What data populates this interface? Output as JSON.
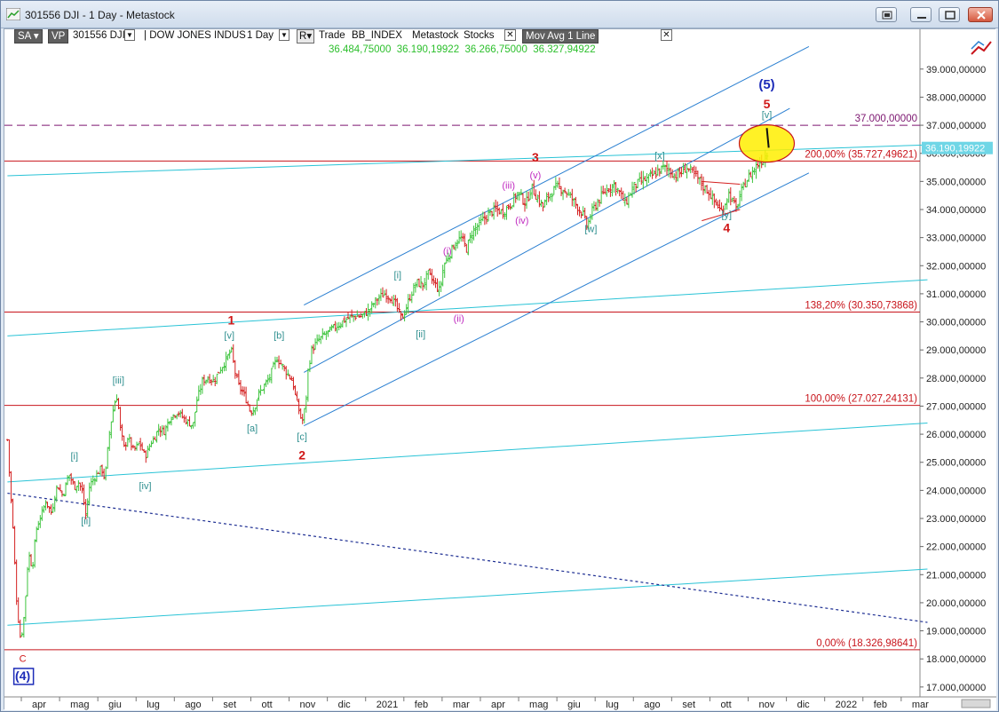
{
  "window": {
    "title": "301556 DJI - 1 Day - Metastock"
  },
  "toolbar": {
    "sa_label": "SA",
    "vp_label": "VP",
    "symbol": "301556 DJI",
    "security_name": "DOW JONES INDUS",
    "period": "1 Day",
    "r_label": "R",
    "trade_label": "Trade",
    "exchange": "BB_INDEX",
    "source": "Metastock",
    "asset_class": "Stocks",
    "indicator_label": "Mov Avg 1 Line",
    "ohlc_values": [
      "36.484,75000",
      "36.190,19922",
      "36.266,75000",
      "36.327,94922"
    ]
  },
  "colors": {
    "up_bar": "#3ec43e",
    "down_bar": "#d42020",
    "channel_blue": "#2a7fd1",
    "channel_cyan": "#29c3d6",
    "fib_red": "#c8141b",
    "level_purple": "#7c1670",
    "dotted_navy": "#1c2d92",
    "ellipse_fill": "#ffee00",
    "price_tag_cyan": "#6fd6e6"
  },
  "chart_data": {
    "type": "candlestick-ohlc",
    "title": "",
    "ylim": [
      16900,
      40100
    ],
    "yticks": [
      {
        "value": 17000,
        "label": "17.000,00000"
      },
      {
        "value": 18000,
        "label": "18.000,00000"
      },
      {
        "value": 19000,
        "label": "19.000,00000"
      },
      {
        "value": 20000,
        "label": "20.000,00000"
      },
      {
        "value": 21000,
        "label": "21.000,00000"
      },
      {
        "value": 22000,
        "label": "22.000,00000"
      },
      {
        "value": 23000,
        "label": "23.000,00000"
      },
      {
        "value": 24000,
        "label": "24.000,00000"
      },
      {
        "value": 25000,
        "label": "25.000,00000"
      },
      {
        "value": 26000,
        "label": "26.000,00000"
      },
      {
        "value": 27000,
        "label": "27.000,00000"
      },
      {
        "value": 28000,
        "label": "28.000,00000"
      },
      {
        "value": 29000,
        "label": "29.000,00000"
      },
      {
        "value": 30000,
        "label": "30.000,00000"
      },
      {
        "value": 31000,
        "label": "31.000,00000"
      },
      {
        "value": 32000,
        "label": "32.000,00000"
      },
      {
        "value": 33000,
        "label": "33.000,00000"
      },
      {
        "value": 34000,
        "label": "34.000,00000"
      },
      {
        "value": 35000,
        "label": "35.000,00000"
      },
      {
        "value": 36000,
        "label": "36.000,00000"
      },
      {
        "value": 37000,
        "label": "37.000,00000"
      },
      {
        "value": 38000,
        "label": "38.000,00000"
      },
      {
        "value": 39000,
        "label": "39.000,00000"
      }
    ],
    "xlabels": [
      "apr",
      "mag",
      "giu",
      "lug",
      "ago",
      "set",
      "ott",
      "nov",
      "dic",
      "2021",
      "feb",
      "mar",
      "apr",
      "mag",
      "giu",
      "lug",
      "ago",
      "set",
      "ott",
      "nov",
      "dic",
      "2022",
      "feb",
      "mar"
    ],
    "x_month_index": [
      0,
      1,
      2,
      3,
      4,
      5,
      6,
      7,
      8,
      9,
      10,
      11,
      12,
      13,
      14,
      15,
      16,
      17,
      18,
      19,
      20,
      21,
      22,
      23
    ],
    "x_start_month_offset": -0.85,
    "price_path": [
      [
        -0.85,
        25800
      ],
      [
        -0.8,
        24600
      ],
      [
        -0.7,
        22500
      ],
      [
        -0.6,
        19800
      ],
      [
        -0.5,
        18600
      ],
      [
        -0.4,
        19700
      ],
      [
        -0.3,
        21800
      ],
      [
        -0.2,
        21200
      ],
      [
        -0.1,
        22600
      ],
      [
        0.0,
        23000
      ],
      [
        0.15,
        23600
      ],
      [
        0.3,
        23200
      ],
      [
        0.45,
        24200
      ],
      [
        0.6,
        23800
      ],
      [
        0.75,
        24600
      ],
      [
        0.9,
        24100
      ],
      [
        1.0,
        24300
      ],
      [
        1.1,
        24000
      ],
      [
        1.2,
        23100
      ],
      [
        1.3,
        24200
      ],
      [
        1.45,
        24500
      ],
      [
        1.6,
        24800
      ],
      [
        1.7,
        24400
      ],
      [
        1.8,
        25900
      ],
      [
        1.9,
        26800
      ],
      [
        2.0,
        27400
      ],
      [
        2.05,
        27000
      ],
      [
        2.1,
        26200
      ],
      [
        2.2,
        25500
      ],
      [
        2.3,
        25900
      ],
      [
        2.45,
        25400
      ],
      [
        2.6,
        25700
      ],
      [
        2.75,
        25200
      ],
      [
        2.9,
        25700
      ],
      [
        3.0,
        25900
      ],
      [
        3.1,
        26200
      ],
      [
        3.25,
        26100
      ],
      [
        3.4,
        26600
      ],
      [
        3.6,
        26800
      ],
      [
        3.8,
        26500
      ],
      [
        4.0,
        26300
      ],
      [
        4.1,
        27200
      ],
      [
        4.25,
        27900
      ],
      [
        4.4,
        28000
      ],
      [
        4.55,
        27900
      ],
      [
        4.7,
        28300
      ],
      [
        4.85,
        28600
      ],
      [
        5.0,
        29000
      ],
      [
        5.1,
        28200
      ],
      [
        5.2,
        27700
      ],
      [
        5.3,
        27500
      ],
      [
        5.4,
        27200
      ],
      [
        5.5,
        26800
      ],
      [
        5.6,
        26900
      ],
      [
        5.7,
        27400
      ],
      [
        5.85,
        27700
      ],
      [
        6.0,
        28000
      ],
      [
        6.1,
        28400
      ],
      [
        6.2,
        28700
      ],
      [
        6.3,
        28500
      ],
      [
        6.45,
        28200
      ],
      [
        6.6,
        27900
      ],
      [
        6.7,
        27200
      ],
      [
        6.8,
        26700
      ],
      [
        6.85,
        26400
      ],
      [
        6.95,
        27100
      ],
      [
        7.0,
        28200
      ],
      [
        7.1,
        29000
      ],
      [
        7.25,
        29300
      ],
      [
        7.4,
        29500
      ],
      [
        7.6,
        29700
      ],
      [
        7.8,
        29900
      ],
      [
        8.0,
        30100
      ],
      [
        8.2,
        30200
      ],
      [
        8.4,
        30200
      ],
      [
        8.6,
        30400
      ],
      [
        8.8,
        30800
      ],
      [
        9.0,
        31000
      ],
      [
        9.15,
        30900
      ],
      [
        9.3,
        30600
      ],
      [
        9.45,
        30100
      ],
      [
        9.55,
        30400
      ],
      [
        9.7,
        31000
      ],
      [
        9.85,
        31400
      ],
      [
        10.0,
        31300
      ],
      [
        10.15,
        31700
      ],
      [
        10.3,
        31400
      ],
      [
        10.45,
        31100
      ],
      [
        10.55,
        32000
      ],
      [
        10.7,
        32400
      ],
      [
        10.85,
        32800
      ],
      [
        11.0,
        33000
      ],
      [
        11.15,
        32600
      ],
      [
        11.3,
        33200
      ],
      [
        11.5,
        33500
      ],
      [
        11.7,
        33800
      ],
      [
        11.9,
        34000
      ],
      [
        12.1,
        33900
      ],
      [
        12.3,
        34200
      ],
      [
        12.5,
        34600
      ],
      [
        12.7,
        34200
      ],
      [
        12.85,
        34800
      ],
      [
        13.0,
        34400
      ],
      [
        13.15,
        34100
      ],
      [
        13.3,
        34500
      ],
      [
        13.5,
        34800
      ],
      [
        13.7,
        34700
      ],
      [
        13.9,
        34400
      ],
      [
        14.05,
        34100
      ],
      [
        14.2,
        33800
      ],
      [
        14.3,
        33400
      ],
      [
        14.45,
        34000
      ],
      [
        14.6,
        34300
      ],
      [
        14.8,
        34700
      ],
      [
        15.0,
        34900
      ],
      [
        15.15,
        34600
      ],
      [
        15.3,
        34200
      ],
      [
        15.5,
        34800
      ],
      [
        15.7,
        35000
      ],
      [
        15.9,
        35100
      ],
      [
        16.1,
        35300
      ],
      [
        16.3,
        35500
      ],
      [
        16.45,
        35400
      ],
      [
        16.6,
        35200
      ],
      [
        16.75,
        35300
      ],
      [
        16.9,
        35500
      ],
      [
        17.05,
        35300
      ],
      [
        17.2,
        35100
      ],
      [
        17.35,
        34800
      ],
      [
        17.5,
        34600
      ],
      [
        17.6,
        34300
      ],
      [
        17.7,
        34200
      ],
      [
        17.8,
        33900
      ],
      [
        17.9,
        34200
      ],
      [
        18.0,
        34600
      ],
      [
        18.1,
        34300
      ],
      [
        18.2,
        34000
      ],
      [
        18.3,
        34500
      ],
      [
        18.45,
        35000
      ],
      [
        18.6,
        35300
      ],
      [
        18.75,
        35600
      ],
      [
        18.9,
        35800
      ],
      [
        19.0,
        36000
      ],
      [
        19.05,
        36100
      ]
    ],
    "horizontal_levels": [
      {
        "value": 37000,
        "label": "37.000,00000",
        "style": "dashed",
        "color_key": "level_purple"
      },
      {
        "value": 35727.49621,
        "label": "200,00% (35.727,49621)",
        "style": "solid",
        "color_key": "fib_red"
      },
      {
        "value": 30350.73868,
        "label": "138,20% (30.350,73868)",
        "style": "solid",
        "color_key": "fib_red"
      },
      {
        "value": 27027.24131,
        "label": "100,00% (27.027,24131)",
        "style": "solid",
        "color_key": "fib_red"
      },
      {
        "value": 18326.98641,
        "label": "0,00% (18.326,98641)",
        "style": "solid",
        "color_key": "fib_red"
      }
    ],
    "last_price_tag": "36.190,19922",
    "trendlines": [
      {
        "from": [
          -0.85,
          24300
        ],
        "to": [
          23.2,
          26400
        ],
        "color_key": "channel_cyan"
      },
      {
        "from": [
          -0.85,
          29500
        ],
        "to": [
          23.2,
          31500
        ],
        "color_key": "channel_cyan"
      },
      {
        "from": [
          -0.85,
          19200
        ],
        "to": [
          23.2,
          21200
        ],
        "color_key": "channel_cyan"
      },
      {
        "from": [
          -0.85,
          35200
        ],
        "to": [
          23.2,
          36300
        ],
        "color_key": "channel_cyan"
      },
      {
        "from": [
          6.9,
          30600
        ],
        "to": [
          20.1,
          39800
        ],
        "color_key": "channel_blue"
      },
      {
        "from": [
          6.9,
          28200
        ],
        "to": [
          19.6,
          37600
        ],
        "color_key": "channel_blue"
      },
      {
        "from": [
          6.9,
          26300
        ],
        "to": [
          20.1,
          35300
        ],
        "color_key": "channel_blue"
      },
      {
        "from": [
          -0.85,
          23900
        ],
        "to": [
          23.2,
          19300
        ],
        "color_key": "dotted_navy",
        "dotted": true
      },
      {
        "from": [
          17.3,
          35000
        ],
        "to": [
          18.3,
          34900
        ],
        "color_key": "down_bar"
      },
      {
        "from": [
          17.3,
          33600
        ],
        "to": [
          18.3,
          34000
        ],
        "color_key": "down_bar"
      }
    ],
    "target_ellipse": {
      "cx": 19.0,
      "cy": 36350
    },
    "wave_labels": [
      {
        "text": "(5)",
        "x": 19.0,
        "y": 38300,
        "color": "#1c2bb8",
        "size": 15,
        "bold": true
      },
      {
        "text": "5",
        "x": 19.0,
        "y": 37600,
        "color": "#d01818",
        "size": 14,
        "bold": true
      },
      {
        "text": "[v]",
        "x": 19.0,
        "y": 37250,
        "color": "#2f8f8f",
        "size": 11,
        "bold": false
      },
      {
        "text": "3",
        "x": 12.95,
        "y": 35700,
        "color": "#d01818",
        "size": 14,
        "bold": true
      },
      {
        "text": "(v)",
        "x": 12.95,
        "y": 35100,
        "color": "#c02ac0",
        "size": 11,
        "bold": false
      },
      {
        "text": "(iii)",
        "x": 12.25,
        "y": 34750,
        "color": "#c02ac0",
        "size": 11,
        "bold": false
      },
      {
        "text": "(iv)",
        "x": 12.6,
        "y": 33500,
        "color": "#c02ac0",
        "size": 11,
        "bold": false
      },
      {
        "text": "[x]",
        "x": 16.2,
        "y": 35800,
        "color": "#2f8f8f",
        "size": 11,
        "bold": false
      },
      {
        "text": "[w]",
        "x": 14.4,
        "y": 33200,
        "color": "#2f8f8f",
        "size": 11,
        "bold": false
      },
      {
        "text": "[y]",
        "x": 17.95,
        "y": 33700,
        "color": "#2f8f8f",
        "size": 11,
        "bold": false
      },
      {
        "text": "4",
        "x": 17.95,
        "y": 33200,
        "color": "#d01818",
        "size": 14,
        "bold": true
      },
      {
        "text": "(i)",
        "x": 10.65,
        "y": 32400,
        "color": "#c02ac0",
        "size": 11,
        "bold": false
      },
      {
        "text": "(ii)",
        "x": 10.95,
        "y": 30000,
        "color": "#c02ac0",
        "size": 11,
        "bold": false
      },
      {
        "text": "[i]",
        "x": 9.35,
        "y": 31550,
        "color": "#2f8f8f",
        "size": 11,
        "bold": false
      },
      {
        "text": "[ii]",
        "x": 9.95,
        "y": 29450,
        "color": "#2f8f8f",
        "size": 11,
        "bold": false
      },
      {
        "text": "1",
        "x": 5.0,
        "y": 29900,
        "color": "#d01818",
        "size": 14,
        "bold": true
      },
      {
        "text": "[v]",
        "x": 4.95,
        "y": 29400,
        "color": "#2f8f8f",
        "size": 11,
        "bold": false
      },
      {
        "text": "[b]",
        "x": 6.25,
        "y": 29400,
        "color": "#2f8f8f",
        "size": 11,
        "bold": false
      },
      {
        "text": "[a]",
        "x": 5.55,
        "y": 26100,
        "color": "#2f8f8f",
        "size": 11,
        "bold": false
      },
      {
        "text": "[c]",
        "x": 6.85,
        "y": 25800,
        "color": "#2f8f8f",
        "size": 11,
        "bold": false
      },
      {
        "text": "2",
        "x": 6.85,
        "y": 25100,
        "color": "#d01818",
        "size": 14,
        "bold": true
      },
      {
        "text": "[iii]",
        "x": 2.05,
        "y": 27800,
        "color": "#2f8f8f",
        "size": 11,
        "bold": false
      },
      {
        "text": "[iv]",
        "x": 2.75,
        "y": 24050,
        "color": "#2f8f8f",
        "size": 11,
        "bold": false
      },
      {
        "text": "[i]",
        "x": 0.9,
        "y": 25100,
        "color": "#2f8f8f",
        "size": 11,
        "bold": false
      },
      {
        "text": "[ii]",
        "x": 1.2,
        "y": 22800,
        "color": "#2f8f8f",
        "size": 11,
        "bold": false
      },
      {
        "text": "C",
        "x": -0.45,
        "y": 17900,
        "color": "#d01818",
        "size": 11,
        "bold": false
      },
      {
        "text": "(4)",
        "x": -0.45,
        "y": 17250,
        "color": "#1c2bb8",
        "size": 14,
        "bold": true,
        "boxed": true
      }
    ]
  }
}
